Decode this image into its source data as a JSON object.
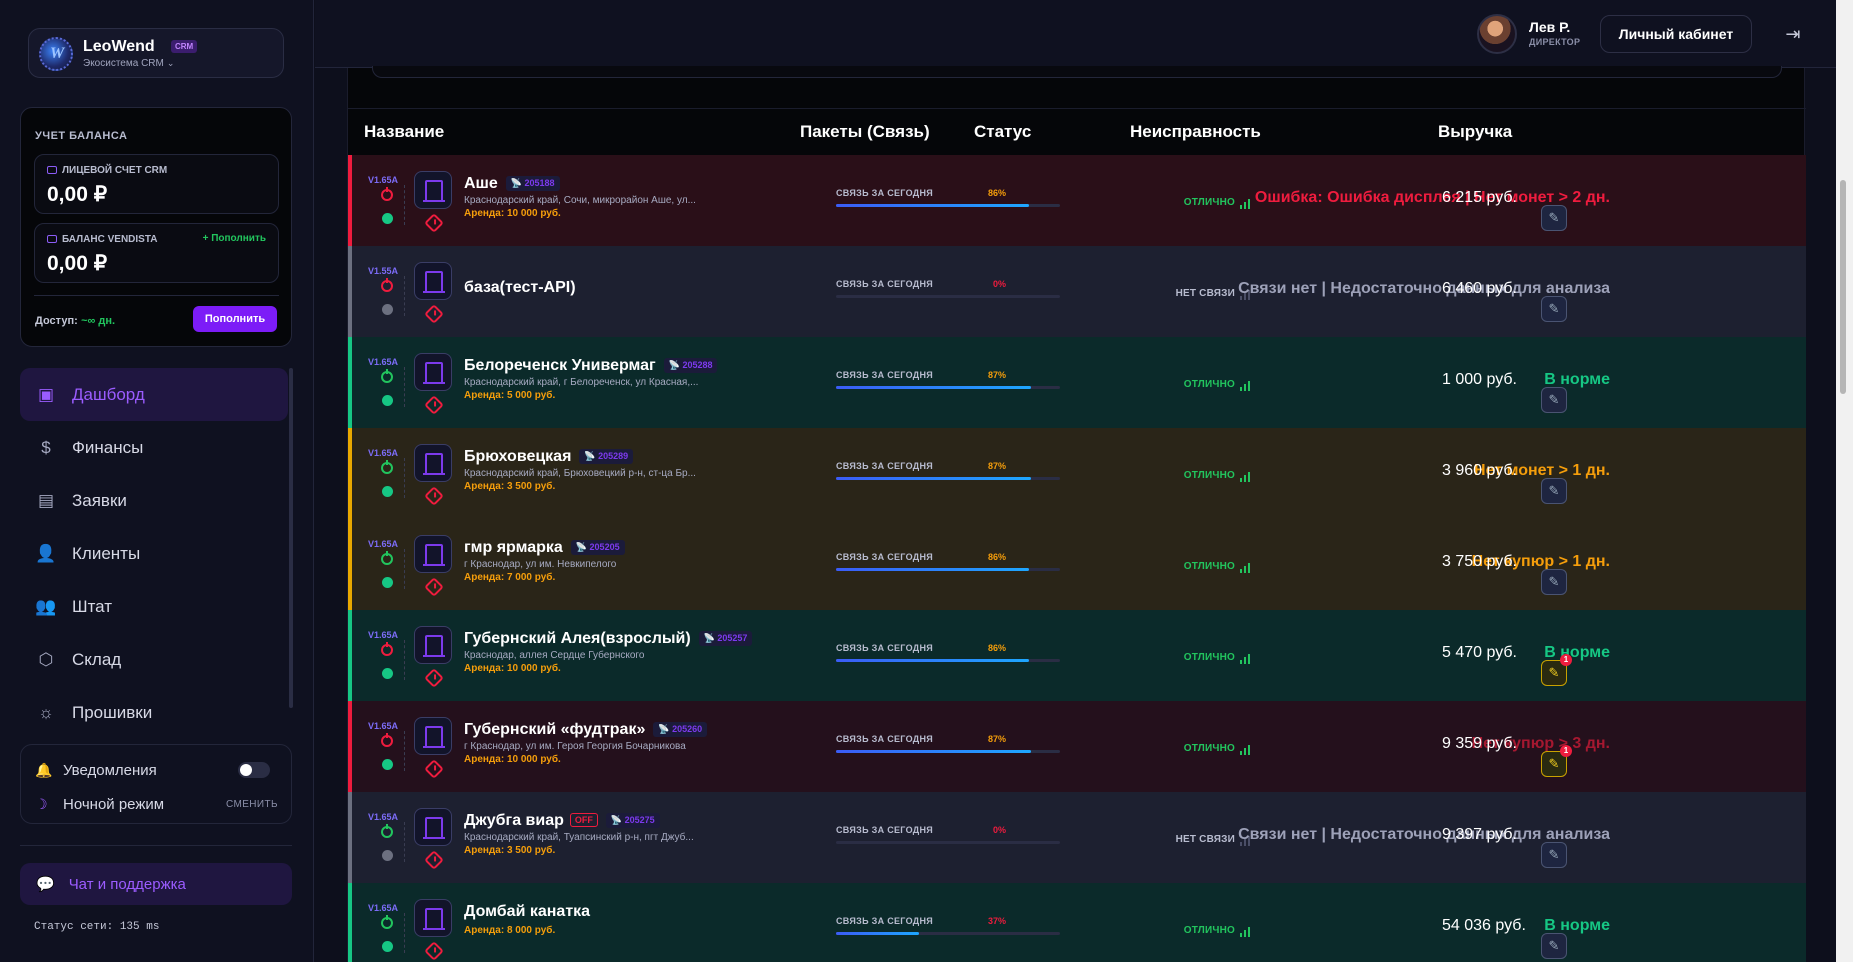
{
  "brand": {
    "name": "LeoWend",
    "tag": "CRM",
    "subtitle": "Экосистема CRM",
    "chevron": "⌄",
    "logo_letter": "W"
  },
  "balance": {
    "title": "УЧЕТ БАЛАНСА",
    "crm": {
      "label": "ЛИЦЕВОЙ СЧЕТ CRM",
      "value": "0,00 ₽"
    },
    "vendista": {
      "label": "БАЛАНС VENDISTA",
      "value": "0,00 ₽",
      "add": "+ Пополнить"
    },
    "access_label": "Доступ:",
    "access_value": "~∞ дн.",
    "topup": "Пополнить"
  },
  "nav": [
    {
      "label": "Дашборд",
      "icon": "dashboard-icon",
      "glyph": "▣",
      "active": true
    },
    {
      "label": "Финансы",
      "icon": "dollar-icon",
      "glyph": "$",
      "active": false
    },
    {
      "label": "Заявки",
      "icon": "document-icon",
      "glyph": "▤",
      "active": false
    },
    {
      "label": "Клиенты",
      "icon": "user-icon",
      "glyph": "👤",
      "active": false
    },
    {
      "label": "Штат",
      "icon": "users-icon",
      "glyph": "👥",
      "active": false
    },
    {
      "label": "Склад",
      "icon": "box-icon",
      "glyph": "⬡",
      "active": false
    },
    {
      "label": "Прошивки",
      "icon": "firmware-icon",
      "glyph": "☼",
      "active": false
    }
  ],
  "settings": {
    "notifications": "Уведомления",
    "night_mode": "Ночной режим",
    "switch": "СМЕНИТЬ",
    "bell": "🔔",
    "moon": "☽"
  },
  "chat": {
    "label": "Чат и поддержка",
    "icon": "💬"
  },
  "network": "Статус сети: 135 ms",
  "header": {
    "user_name": "Лев Р.",
    "user_role": "ДИРЕКТОР",
    "cabinet": "Личный кабинет",
    "logout": "⇥"
  },
  "table": {
    "headers": {
      "name": "Название",
      "packets": "Пакеты (Связь)",
      "status": "Статус",
      "fault": "Неисправность",
      "revenue": "Выручка"
    },
    "packet_label": "СВЯЗЬ ЗА СЕГОДНЯ",
    "rows": [
      {
        "tone": "red",
        "ver": "V1.65A",
        "power": "off",
        "online": true,
        "name": "Аше",
        "id": "205188",
        "off": "",
        "addr": "Краснодарский край, Сочи, микрорайон Аше, ул...",
        "rent": "Аренда: 10 000 руб.",
        "pct": 86,
        "pct_text": "86%",
        "pct_color": "#f59e0b",
        "status": "ОТЛИЧНО",
        "status_kind": "ok",
        "fault": "Ошибка: Ошибка дисплея | Нет монет > 2 дн.",
        "fault_tone": "red",
        "revenue": "6 215 руб.",
        "badge": ""
      },
      {
        "tone": "gray",
        "ver": "V1.55A",
        "power": "off",
        "online": false,
        "name": "база(тест-API)",
        "id": "",
        "off": "",
        "addr": "",
        "rent": "",
        "pct": 0,
        "pct_text": "0%",
        "pct_color": "#ef1c3e",
        "status": "НЕТ СВЯЗИ",
        "status_kind": "nc",
        "fault": "Связи нет | Недостаточно данных для анализа",
        "fault_tone": "gray",
        "revenue": "6 460 руб.",
        "badge": ""
      },
      {
        "tone": "green",
        "ver": "V1.65A",
        "power": "on",
        "online": true,
        "name": "Белореченск Универмаг",
        "id": "205288",
        "off": "",
        "addr": "Краснодарский край, г Белореченск, ул Красная,...",
        "rent": "Аренда: 5 000 руб.",
        "pct": 87,
        "pct_text": "87%",
        "pct_color": "#f59e0b",
        "status": "ОТЛИЧНО",
        "status_kind": "ok",
        "fault": "В норме",
        "fault_tone": "ok",
        "revenue": "1 000 руб.",
        "badge": ""
      },
      {
        "tone": "amber",
        "ver": "V1.65A",
        "power": "on",
        "online": true,
        "name": "Брюховецкая",
        "id": "205289",
        "off": "",
        "addr": "Краснодарский край, Брюховецкий р-н, ст-ца Бр...",
        "rent": "Аренда: 3 500 руб.",
        "pct": 87,
        "pct_text": "87%",
        "pct_color": "#f59e0b",
        "status": "ОТЛИЧНО",
        "status_kind": "ok",
        "fault": "Нет монет > 1 дн.",
        "fault_tone": "amber",
        "revenue": "3 960 руб.",
        "badge": ""
      },
      {
        "tone": "amber",
        "ver": "V1.65A",
        "power": "on",
        "online": true,
        "name": "гмр ярмарка",
        "id": "205205",
        "off": "",
        "addr": "г Краснодар, ул им. Невкипелого",
        "rent": "Аренда: 7 000 руб.",
        "pct": 86,
        "pct_text": "86%",
        "pct_color": "#f59e0b",
        "status": "ОТЛИЧНО",
        "status_kind": "ok",
        "fault": "Нет купюр > 1 дн.",
        "fault_tone": "amber",
        "revenue": "3 750 руб.",
        "badge": ""
      },
      {
        "tone": "green",
        "ver": "V1.65A",
        "power": "off",
        "online": true,
        "name": "Губернский Алея(взрослый)",
        "id": "205257",
        "off": "",
        "addr": "Краснодар, аллея Сердце Губернского",
        "rent": "Аренда: 10 000 руб.",
        "pct": 86,
        "pct_text": "86%",
        "pct_color": "#f59e0b",
        "status": "ОТЛИЧНО",
        "status_kind": "ok",
        "fault": "В норме",
        "fault_tone": "ok",
        "revenue": "5 470 руб.",
        "badge": "1"
      },
      {
        "tone": "maroon",
        "ver": "V1.65A",
        "power": "off",
        "online": true,
        "name": "Губернский «фудтрак»",
        "id": "205260",
        "off": "",
        "addr": "г Краснодар, ул им. Героя Георгия Бочарникова",
        "rent": "Аренда: 10 000 руб.",
        "pct": 87,
        "pct_text": "87%",
        "pct_color": "#f59e0b",
        "status": "ОТЛИЧНО",
        "status_kind": "ok",
        "fault": "Нет купюр > 3 дн.",
        "fault_tone": "dim",
        "revenue": "9 359 руб.",
        "badge": "1"
      },
      {
        "tone": "gray",
        "ver": "V1.65A",
        "power": "on",
        "online": false,
        "name": "Джубга виар",
        "id": "205275",
        "off": "OFF",
        "addr": "Краснодарский край, Туапсинский р-н, пгт Джуб...",
        "rent": "Аренда: 3 500 руб.",
        "pct": 0,
        "pct_text": "0%",
        "pct_color": "#ef1c3e",
        "status": "НЕТ СВЯЗИ",
        "status_kind": "nc",
        "fault": "Связи нет | Недостаточно данных для анализа",
        "fault_tone": "gray",
        "revenue": "9 397 руб.",
        "badge": ""
      },
      {
        "tone": "green",
        "ver": "V1.65A",
        "power": "on",
        "online": true,
        "name": "Домбай канатка",
        "id": "",
        "off": "",
        "addr": "",
        "rent": "Аренда: 8 000 руб.",
        "pct": 37,
        "pct_text": "37%",
        "pct_color": "#ef1c3e",
        "status": "ОТЛИЧНО",
        "status_kind": "ok",
        "fault": "В норме",
        "fault_tone": "ok",
        "revenue": "54 036 руб.",
        "badge": ""
      }
    ]
  }
}
